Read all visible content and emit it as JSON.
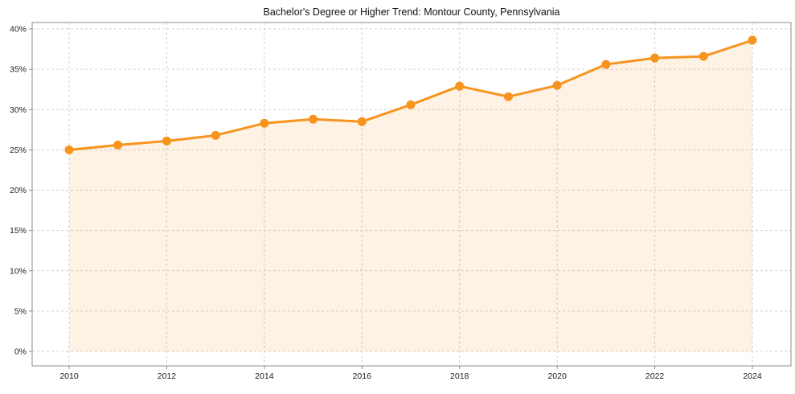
{
  "chart_data": {
    "type": "area",
    "title": "Bachelor's Degree or Higher Trend: Montour County, Pennsylvania",
    "series_name": "Bachelor's Degree or Higher (%)",
    "x": [
      2010,
      2011,
      2012,
      2013,
      2014,
      2015,
      2016,
      2017,
      2018,
      2019,
      2020,
      2021,
      2022,
      2023,
      2024
    ],
    "values": [
      25.0,
      25.6,
      26.1,
      26.8,
      28.3,
      28.8,
      28.5,
      30.6,
      32.9,
      31.6,
      33.0,
      35.6,
      36.4,
      36.6,
      38.6
    ],
    "xlabel": "",
    "ylabel": "",
    "ylim": [
      0,
      40
    ],
    "ytick_step": 5,
    "ytick_suffix": "%",
    "xtick_step": 2,
    "grid": true,
    "legend_position": "none",
    "line_color": "#f7941e",
    "marker_color": "#f7941e",
    "fill_color": "#f7941e",
    "fill_opacity": 0.12,
    "grid_color": "#d0d0d0",
    "axis_color": "#8c8c8c",
    "tick_label_color": "#222222",
    "title_color": "#111111"
  }
}
